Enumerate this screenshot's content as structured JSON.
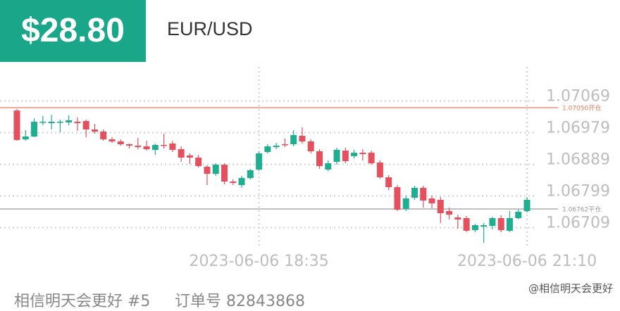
{
  "header": {
    "price": "$28.80",
    "pair": "EUR/USD"
  },
  "chart_data": {
    "type": "candlestick",
    "categories": [
      null,
      null,
      null,
      null,
      null,
      null,
      null,
      null,
      null,
      null,
      null,
      null,
      null,
      null,
      null,
      null,
      null,
      null,
      null,
      null,
      null,
      null,
      null,
      null,
      null,
      null,
      null,
      null,
      "2023-06-06 18:35",
      null,
      null,
      null,
      null,
      null,
      null,
      null,
      null,
      null,
      null,
      null,
      null,
      null,
      null,
      null,
      null,
      null,
      null,
      null,
      null,
      null,
      null,
      null,
      null,
      null,
      null,
      null,
      null,
      null,
      null,
      "2023-06-06 21:10"
    ],
    "open": [
      1.07042,
      1.0696,
      1.06968,
      1.07008,
      1.07006,
      1.07008,
      1.07008,
      1.0701,
      1.07012,
      1.06988,
      1.06982,
      1.0696,
      1.06954,
      1.06946,
      1.06942,
      1.0694,
      1.0693,
      1.06944,
      1.06948,
      1.06932,
      1.06914,
      1.06908,
      1.06882,
      1.06862,
      1.06888,
      1.0684,
      1.0683,
      1.0685,
      1.06874,
      1.06924,
      1.06938,
      1.06946,
      1.06946,
      1.0697,
      1.06954,
      1.06926,
      1.06874,
      1.06896,
      1.06928,
      1.06912,
      1.06922,
      1.06922,
      1.06894,
      1.06852,
      1.06824,
      1.06762,
      1.06794,
      1.06822,
      1.06792,
      1.06788,
      1.06756,
      1.06738,
      1.06736,
      1.06702,
      1.06712,
      1.06714,
      1.06736,
      1.067,
      1.06736,
      1.06756
    ],
    "high": [
      1.07046,
      1.06986,
      1.0702,
      1.07026,
      1.0703,
      1.07016,
      1.07028,
      1.07022,
      1.07016,
      1.07004,
      1.06988,
      1.06966,
      1.0696,
      1.06948,
      1.06964,
      1.06956,
      1.06948,
      1.06976,
      1.06956,
      1.0694,
      1.0692,
      1.06916,
      1.06886,
      1.06892,
      1.06892,
      1.06846,
      1.06856,
      1.06876,
      1.06926,
      1.06946,
      1.0695,
      1.06962,
      1.06986,
      1.06994,
      1.0696,
      1.06932,
      1.069,
      1.06936,
      1.06936,
      1.0693,
      1.06932,
      1.06928,
      1.069,
      1.06858,
      1.0683,
      1.068,
      1.06828,
      1.06828,
      1.068,
      1.06796,
      1.06766,
      1.06746,
      1.06742,
      1.0672,
      1.06722,
      1.0674,
      1.06744,
      1.06756,
      1.0676,
      1.06796
    ],
    "low": [
      1.06956,
      1.06956,
      1.06966,
      1.07,
      1.06988,
      1.0698,
      1.07,
      1.06984,
      1.06966,
      1.06976,
      1.06956,
      1.0695,
      1.06942,
      1.06934,
      1.06932,
      1.06928,
      1.06916,
      1.06934,
      1.06924,
      1.06896,
      1.0689,
      1.0688,
      1.0683,
      1.06856,
      1.06832,
      1.0683,
      1.06822,
      1.06846,
      1.0687,
      1.0692,
      1.06932,
      1.06938,
      1.0694,
      1.06948,
      1.0692,
      1.06876,
      1.0687,
      1.06888,
      1.06892,
      1.06906,
      1.069,
      1.06888,
      1.06848,
      1.06816,
      1.06756,
      1.06756,
      1.06788,
      1.06766,
      1.06764,
      1.06722,
      1.06732,
      1.06706,
      1.06696,
      1.06696,
      1.06666,
      1.06704,
      1.06696,
      1.06696,
      1.06732,
      1.06752
    ],
    "close": [
      1.06958,
      1.06968,
      1.0701,
      1.0701,
      1.0701,
      1.0701,
      1.07014,
      1.07006,
      1.06988,
      1.06982,
      1.0696,
      1.06954,
      1.06946,
      1.06942,
      1.06938,
      1.06932,
      1.06944,
      1.06942,
      1.0693,
      1.06908,
      1.06908,
      1.06884,
      1.06862,
      1.06888,
      1.0684,
      1.06836,
      1.0685,
      1.06872,
      1.0692,
      1.0694,
      1.06942,
      1.06944,
      1.06972,
      1.06954,
      1.06926,
      1.06884,
      1.06892,
      1.0693,
      1.06898,
      1.06922,
      1.06918,
      1.06892,
      1.06852,
      1.06824,
      1.0676,
      1.06792,
      1.06822,
      1.06786,
      1.06778,
      1.0675,
      1.06746,
      1.06732,
      1.067,
      1.06716,
      1.06716,
      1.06736,
      1.06702,
      1.06736,
      1.06754,
      1.06788
    ],
    "up_color": "#1fae8f",
    "down_color": "#e5505f",
    "ylim": [
      1.06666,
      1.07166
    ],
    "yticks": [
      1.07069,
      1.06979,
      1.06889,
      1.06799,
      1.06709
    ],
    "grid": true,
    "lines": [
      {
        "value": 1.0705,
        "label": "1.07050开仓",
        "color": "#e8795c"
      },
      {
        "value": 1.06762,
        "label": "1.06762平仓",
        "color": "#9a9a9a"
      }
    ]
  },
  "footer": {
    "user": "相信明天会更好 #5",
    "order": "订单号 82843868",
    "watermark": "@相信明天会更好"
  }
}
